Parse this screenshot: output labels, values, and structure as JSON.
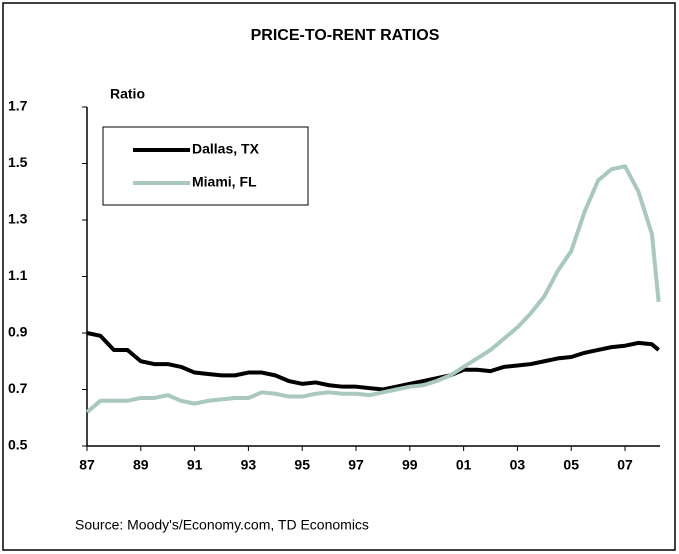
{
  "chart_data": {
    "type": "line",
    "title": "PRICE-TO-RENT RATIOS",
    "ylabel": "Ratio",
    "source": "Source: Moody's/Economy.com, TD Economics",
    "x": [
      1987,
      1987.5,
      1988,
      1988.5,
      1989,
      1989.5,
      1990,
      1990.5,
      1991,
      1991.5,
      1992,
      1992.5,
      1993,
      1993.5,
      1994,
      1994.5,
      1995,
      1995.5,
      1996,
      1996.5,
      1997,
      1997.5,
      1998,
      1998.5,
      1999,
      1999.5,
      2000,
      2000.5,
      2001,
      2001.5,
      2002,
      2002.5,
      2003,
      2003.5,
      2004,
      2004.5,
      2005,
      2005.5,
      2006,
      2006.5,
      2007,
      2007.5,
      2008,
      2008.25
    ],
    "series": [
      {
        "name": "Dallas, TX",
        "color": "#000000",
        "values": [
          0.9,
          0.89,
          0.84,
          0.84,
          0.8,
          0.79,
          0.79,
          0.78,
          0.76,
          0.755,
          0.75,
          0.75,
          0.76,
          0.76,
          0.75,
          0.73,
          0.72,
          0.725,
          0.715,
          0.71,
          0.71,
          0.705,
          0.7,
          0.71,
          0.72,
          0.73,
          0.74,
          0.75,
          0.77,
          0.77,
          0.765,
          0.78,
          0.785,
          0.79,
          0.8,
          0.81,
          0.815,
          0.83,
          0.84,
          0.85,
          0.855,
          0.865,
          0.86,
          0.84
        ]
      },
      {
        "name": "Miami, FL",
        "color": "#a8c8c0",
        "values": [
          0.62,
          0.66,
          0.66,
          0.66,
          0.67,
          0.67,
          0.68,
          0.66,
          0.65,
          0.66,
          0.665,
          0.67,
          0.67,
          0.69,
          0.685,
          0.675,
          0.675,
          0.685,
          0.69,
          0.685,
          0.685,
          0.68,
          0.69,
          0.7,
          0.71,
          0.715,
          0.73,
          0.75,
          0.78,
          0.81,
          0.84,
          0.88,
          0.92,
          0.97,
          1.03,
          1.12,
          1.19,
          1.33,
          1.44,
          1.48,
          1.49,
          1.4,
          1.25,
          1.01
        ]
      }
    ],
    "xlim": [
      1987,
      2008.3
    ],
    "xticks": [
      {
        "value": 1987,
        "label": "87"
      },
      {
        "value": 1989,
        "label": "89"
      },
      {
        "value": 1991,
        "label": "91"
      },
      {
        "value": 1993,
        "label": "93"
      },
      {
        "value": 1995,
        "label": "95"
      },
      {
        "value": 1997,
        "label": "97"
      },
      {
        "value": 1999,
        "label": "99"
      },
      {
        "value": 2001,
        "label": "01"
      },
      {
        "value": 2003,
        "label": "03"
      },
      {
        "value": 2005,
        "label": "05"
      },
      {
        "value": 2007,
        "label": "07"
      }
    ],
    "ylim": [
      0.5,
      1.7
    ],
    "yticks": [
      0.5,
      0.7,
      0.9,
      1.1,
      1.3,
      1.5,
      1.7
    ],
    "grid": false,
    "legend": "upper left"
  }
}
